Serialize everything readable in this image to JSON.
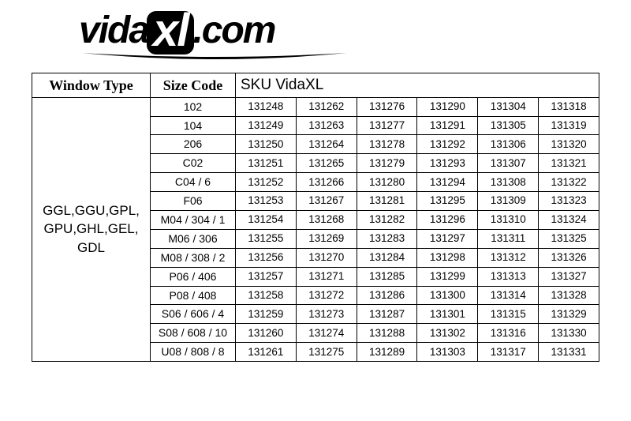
{
  "logo": {
    "vida": "vida",
    "xl": "xl",
    "com": ".com"
  },
  "headers": {
    "window_type": "Window Type",
    "size_code": "Size Code",
    "sku": "SKU VidaXL"
  },
  "window_type_value": "GGL,GGU,GPL,\nGPU,GHL,GEL,\nGDL",
  "rows": [
    {
      "size": "102",
      "skus": [
        "131248",
        "131262",
        "131276",
        "131290",
        "131304",
        "131318"
      ]
    },
    {
      "size": "104",
      "skus": [
        "131249",
        "131263",
        "131277",
        "131291",
        "131305",
        "131319"
      ]
    },
    {
      "size": "206",
      "skus": [
        "131250",
        "131264",
        "131278",
        "131292",
        "131306",
        "131320"
      ]
    },
    {
      "size": "C02",
      "skus": [
        "131251",
        "131265",
        "131279",
        "131293",
        "131307",
        "131321"
      ]
    },
    {
      "size": "C04 / 6",
      "skus": [
        "131252",
        "131266",
        "131280",
        "131294",
        "131308",
        "131322"
      ]
    },
    {
      "size": "F06",
      "skus": [
        "131253",
        "131267",
        "131281",
        "131295",
        "131309",
        "131323"
      ]
    },
    {
      "size": "M04 / 304 / 1",
      "skus": [
        "131254",
        "131268",
        "131282",
        "131296",
        "131310",
        "131324"
      ]
    },
    {
      "size": "M06 / 306",
      "skus": [
        "131255",
        "131269",
        "131283",
        "131297",
        "131311",
        "131325"
      ]
    },
    {
      "size": "M08 / 308 / 2",
      "skus": [
        "131256",
        "131270",
        "131284",
        "131298",
        "131312",
        "131326"
      ]
    },
    {
      "size": "P06 / 406",
      "skus": [
        "131257",
        "131271",
        "131285",
        "131299",
        "131313",
        "131327"
      ]
    },
    {
      "size": "P08 / 408",
      "skus": [
        "131258",
        "131272",
        "131286",
        "131300",
        "131314",
        "131328"
      ]
    },
    {
      "size": "S06 / 606 / 4",
      "skus": [
        "131259",
        "131273",
        "131287",
        "131301",
        "131315",
        "131329"
      ]
    },
    {
      "size": "S08 / 608 / 10",
      "skus": [
        "131260",
        "131274",
        "131288",
        "131302",
        "131316",
        "131330"
      ]
    },
    {
      "size": "U08 / 808 / 8",
      "skus": [
        "131261",
        "131275",
        "131289",
        "131303",
        "131317",
        "131331"
      ]
    }
  ],
  "colors": {
    "border": "#000000",
    "background": "#ffffff",
    "text": "#000000"
  }
}
